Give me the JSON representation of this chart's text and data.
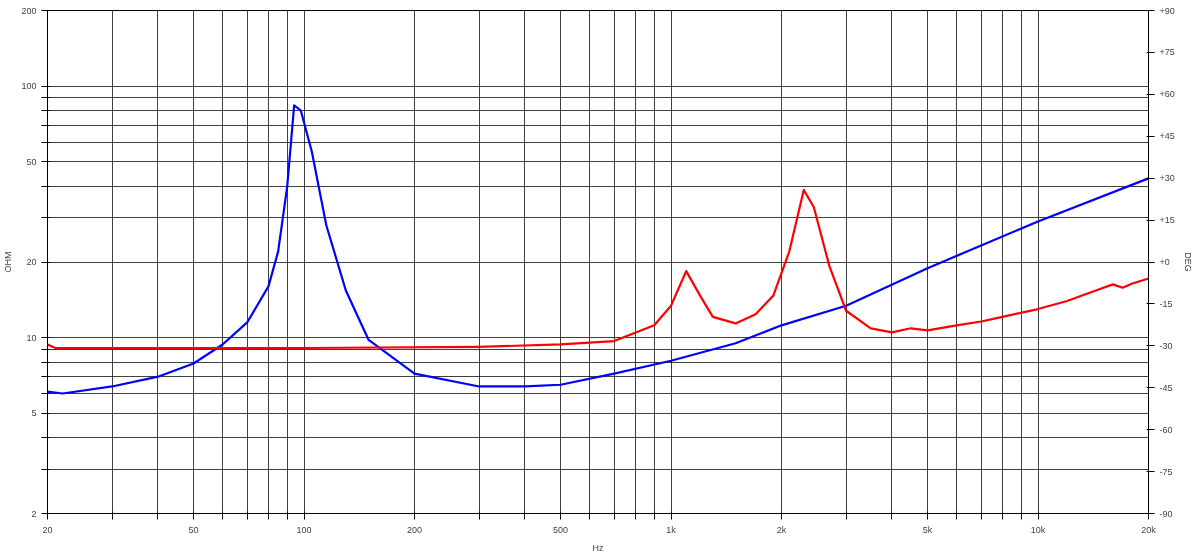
{
  "chart_data": {
    "type": "line",
    "xlabel": "Hz",
    "ylabel": "OHM",
    "y2label": "DEG",
    "log": "xy",
    "grid": true,
    "marker": "none",
    "line_style": "solid",
    "xlim": [
      20,
      20000
    ],
    "ylim": [
      2,
      200
    ],
    "y2lim": [
      -90,
      90
    ],
    "xticks": [
      20,
      {
        "value": 30,
        "label": null
      },
      {
        "value": 40,
        "label": null
      },
      50,
      {
        "value": 60,
        "label": null
      },
      {
        "value": 70,
        "label": null
      },
      {
        "value": 80,
        "label": null
      },
      {
        "value": 90,
        "label": null
      },
      100,
      200,
      {
        "value": 300,
        "label": null
      },
      {
        "value": 400,
        "label": null
      },
      500,
      {
        "value": 600,
        "label": null
      },
      {
        "value": 700,
        "label": null
      },
      {
        "value": 800,
        "label": null
      },
      {
        "value": 900,
        "label": null
      },
      {
        "value": 1000,
        "label": "1k"
      },
      {
        "value": 2000,
        "label": "2k"
      },
      {
        "value": 3000,
        "label": null
      },
      {
        "value": 4000,
        "label": null
      },
      {
        "value": 5000,
        "label": "5k"
      },
      {
        "value": 6000,
        "label": null
      },
      {
        "value": 7000,
        "label": null
      },
      {
        "value": 8000,
        "label": null
      },
      {
        "value": 9000,
        "label": null
      },
      {
        "value": 10000,
        "label": "10k"
      },
      {
        "value": 20000,
        "label": "20k"
      }
    ],
    "yticks": [
      2,
      {
        "value": 3,
        "label": null
      },
      {
        "value": 4,
        "label": null
      },
      5,
      {
        "value": 6,
        "label": null
      },
      {
        "value": 7,
        "label": null
      },
      {
        "value": 8,
        "label": null
      },
      {
        "value": 9,
        "label": null
      },
      10,
      20,
      {
        "value": 30,
        "label": null
      },
      {
        "value": 40,
        "label": null
      },
      50,
      {
        "value": 60,
        "label": null
      },
      {
        "value": 70,
        "label": null
      },
      {
        "value": 80,
        "label": null
      },
      {
        "value": 90,
        "label": null
      },
      100,
      200
    ],
    "y2ticks": [
      -90,
      -75,
      -60,
      -45,
      -30,
      -15,
      {
        "value": 0,
        "label": "+0"
      },
      {
        "value": 15,
        "label": "+15"
      },
      {
        "value": 30,
        "label": "+30"
      },
      {
        "value": 45,
        "label": "+45"
      },
      {
        "value": 60,
        "label": "+60"
      },
      {
        "value": 75,
        "label": "+75"
      },
      {
        "value": 90,
        "label": "+90"
      }
    ],
    "series": [
      {
        "color": "#0000ff",
        "x": [
          20,
          22,
          30,
          40,
          50,
          60,
          70,
          80,
          85,
          90,
          94,
          98,
          105,
          115,
          130,
          150,
          200,
          300,
          400,
          500,
          700,
          1000,
          1500,
          2000,
          3000,
          5000,
          10000,
          20000
        ],
        "values": [
          6.1,
          6.0,
          6.4,
          7.0,
          7.9,
          9.4,
          11.5,
          16,
          22,
          40,
          84,
          80,
          55,
          28,
          15.4,
          9.8,
          7.2,
          6.4,
          6.4,
          6.5,
          7.2,
          8.1,
          9.5,
          11.2,
          13.4,
          18.9,
          29,
          43
        ]
      },
      {
        "color": "#ff0000",
        "x": [
          20,
          21,
          100,
          300,
          500,
          700,
          900,
          1000,
          1100,
          1200,
          1300,
          1500,
          1700,
          1900,
          2100,
          2300,
          2450,
          2700,
          3000,
          3500,
          4000,
          4500,
          5000,
          6000,
          7000,
          8000,
          10000,
          12000,
          14000,
          16000,
          17000,
          18000,
          20000
        ],
        "values": [
          9.4,
          9.1,
          9.1,
          9.2,
          9.4,
          9.7,
          11.2,
          13.4,
          18.4,
          14.7,
          12.1,
          11.4,
          12.4,
          14.7,
          22,
          38.7,
          33,
          19.3,
          12.8,
          10.9,
          10.5,
          10.9,
          10.7,
          11.2,
          11.6,
          12.1,
          13.0,
          14.0,
          15.2,
          16.3,
          15.8,
          16.4,
          17.2
        ]
      }
    ]
  }
}
